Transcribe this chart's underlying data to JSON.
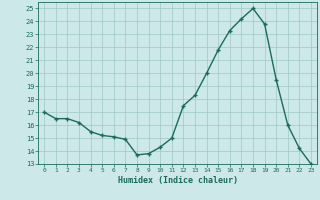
{
  "x": [
    0,
    1,
    2,
    3,
    4,
    5,
    6,
    7,
    8,
    9,
    10,
    11,
    12,
    13,
    14,
    15,
    16,
    17,
    18,
    19,
    20,
    21,
    22,
    23
  ],
  "y": [
    17.0,
    16.5,
    16.5,
    16.2,
    15.5,
    15.2,
    15.1,
    14.9,
    13.7,
    13.8,
    14.3,
    15.0,
    17.5,
    18.3,
    20.0,
    21.8,
    23.3,
    24.2,
    25.0,
    23.8,
    19.5,
    16.0,
    14.2,
    13.0
  ],
  "line_color": "#1a6b5a",
  "marker": "+",
  "xlabel": "Humidex (Indice chaleur)",
  "ylabel_ticks": [
    13,
    14,
    15,
    16,
    17,
    18,
    19,
    20,
    21,
    22,
    23,
    24,
    25
  ],
  "xlim": [
    -0.5,
    23.5
  ],
  "ylim": [
    13,
    25.5
  ],
  "bg_color": "#cde8e8",
  "grid_color": "#a0c8c8",
  "tick_color": "#1a6b5a",
  "label_color": "#1a6b5a",
  "font_name": "monospace"
}
